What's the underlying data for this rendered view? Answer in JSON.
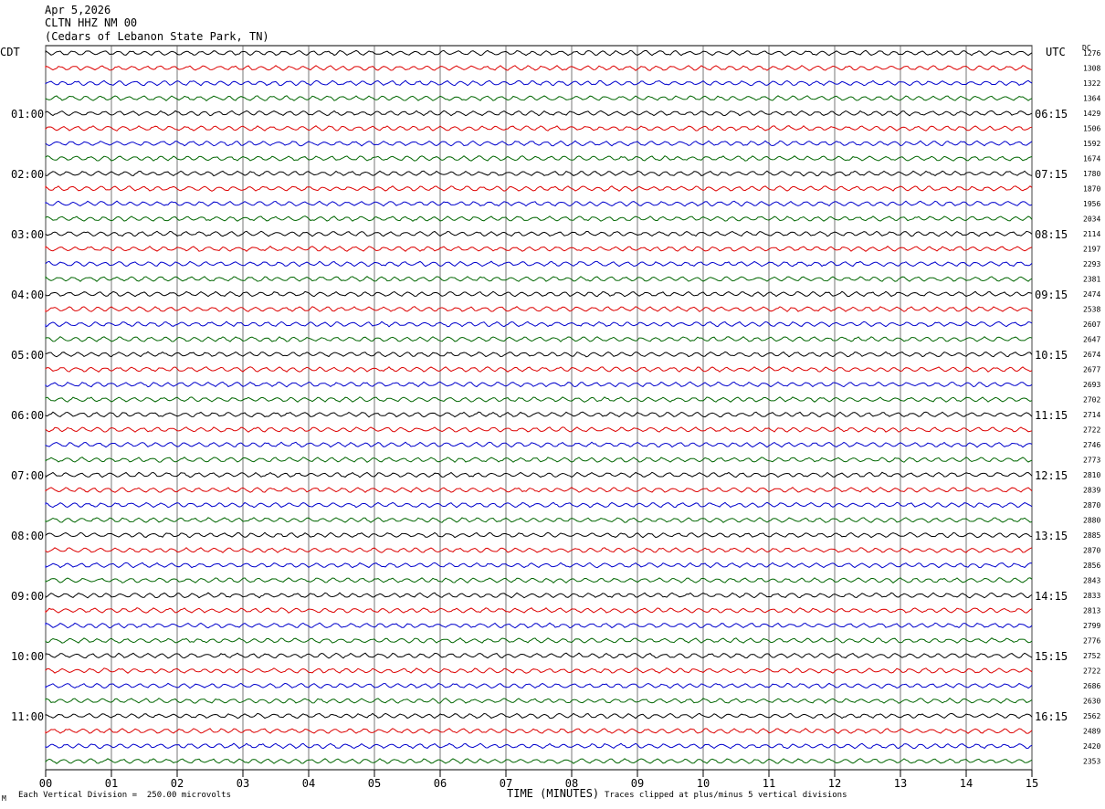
{
  "header": {
    "date": "Apr 5,2026",
    "station": "CLTN HHZ NM 00",
    "location": "(Cedars of Lebanon State Park, TN)"
  },
  "left_tz": "CDT",
  "right_tz": "UTC",
  "dc_label": "DC",
  "footer": {
    "scale_note": "Each Vertical Division =  250.00 microvolts",
    "clip_note": "Traces clipped at plus/minus 5 vertical divisions",
    "corner_mark": "M"
  },
  "chart_data": {
    "type": "line",
    "title": "",
    "xlabel": "TIME (MINUTES)",
    "ylabel": "",
    "xlim": [
      0,
      15
    ],
    "x_ticks": [
      "00",
      "01",
      "02",
      "03",
      "04",
      "05",
      "06",
      "07",
      "08",
      "09",
      "10",
      "11",
      "12",
      "13",
      "14",
      "15"
    ],
    "grid": true,
    "trace_count": 48,
    "trace_colors": [
      "#000000",
      "#dd0000",
      "#0000cc",
      "#006600"
    ],
    "left_hour_labels": [
      "01:00",
      "02:00",
      "03:00",
      "04:00",
      "05:00",
      "06:00",
      "07:00",
      "08:00",
      "09:00",
      "10:00",
      "11:00"
    ],
    "right_hour_labels": [
      "06:15",
      "07:15",
      "08:15",
      "09:15",
      "10:15",
      "11:15",
      "12:15",
      "13:15",
      "14:15",
      "15:15",
      "16:15"
    ],
    "dc_offsets": [
      1276,
      1308,
      1322,
      1364,
      1429,
      1506,
      1592,
      1674,
      1780,
      1870,
      1956,
      2034,
      2114,
      2197,
      2293,
      2381,
      2474,
      2538,
      2607,
      2647,
      2674,
      2677,
      2693,
      2702,
      2714,
      2722,
      2746,
      2773,
      2810,
      2839,
      2870,
      2880,
      2885,
      2870,
      2856,
      2843,
      2833,
      2813,
      2799,
      2776,
      2752,
      2722,
      2686,
      2630,
      2562,
      2489,
      2420,
      2353
    ]
  }
}
